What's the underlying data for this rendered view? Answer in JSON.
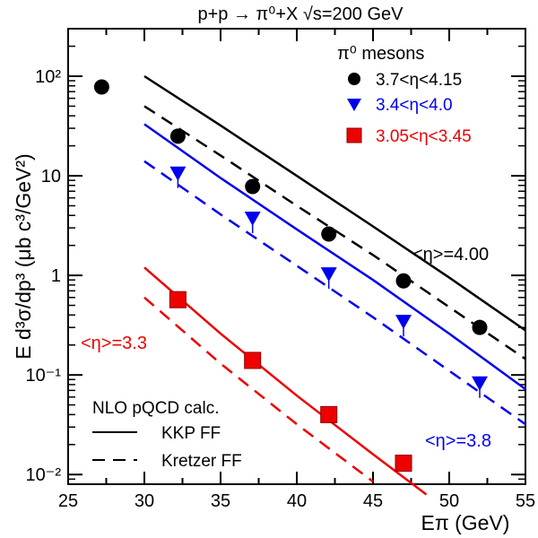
{
  "chart_data": {
    "type": "scatter",
    "title": "p+p → π⁰+X   √s=200 GeV",
    "xlabel": "Eπ (GeV)",
    "ylabel": "E d³σ/dp³ (μb c³/GeV²)",
    "xlim": [
      25,
      55
    ],
    "ylim": [
      0.008,
      300
    ],
    "yscale": "log",
    "x_ticks": [
      25,
      30,
      35,
      40,
      45,
      50,
      55
    ],
    "y_ticks": [
      {
        "value": 0.01,
        "label": "10⁻²"
      },
      {
        "value": 0.1,
        "label": "10⁻¹"
      },
      {
        "value": 1,
        "label": "1"
      },
      {
        "value": 10,
        "label": "10"
      },
      {
        "value": 100,
        "label": "10²"
      }
    ],
    "legend_header": "π⁰ mesons",
    "series": [
      {
        "name": "3.7<η<4.15",
        "marker": "circle",
        "color": "#000000",
        "x": [
          27.2,
          32.2,
          37.1,
          42.1,
          47.0,
          52.0
        ],
        "y": [
          78,
          25,
          7.8,
          2.6,
          0.88,
          0.3
        ]
      },
      {
        "name": "3.4<η<4.0",
        "marker": "triangle-down",
        "color": "#0000ee",
        "x": [
          32.2,
          37.1,
          42.1,
          47.0,
          52.0
        ],
        "y": [
          10.5,
          3.7,
          1.02,
          0.34,
          0.082
        ]
      },
      {
        "name": "3.05<η<3.45",
        "marker": "square",
        "color": "#ee0000",
        "x": [
          32.2,
          37.1,
          42.1,
          47.0
        ],
        "y": [
          0.57,
          0.14,
          0.04,
          0.013
        ]
      }
    ],
    "curves": [
      {
        "style": "solid",
        "color": "#000000",
        "x": [
          30,
          35,
          40,
          45,
          50,
          55
        ],
        "y": [
          100,
          32,
          10,
          3.1,
          0.95,
          0.28
        ]
      },
      {
        "style": "dashed",
        "color": "#000000",
        "x": [
          30,
          35,
          40,
          45,
          50,
          55
        ],
        "y": [
          50,
          16,
          5,
          1.6,
          0.48,
          0.145
        ]
      },
      {
        "style": "solid",
        "color": "#0000ee",
        "x": [
          30,
          35,
          40,
          45,
          50,
          55
        ],
        "y": [
          33,
          9.5,
          2.9,
          0.9,
          0.26,
          0.072
        ]
      },
      {
        "style": "dashed",
        "color": "#0000ee",
        "x": [
          30,
          35,
          40,
          45,
          50,
          55
        ],
        "y": [
          14,
          4.1,
          1.25,
          0.38,
          0.11,
          0.032
        ]
      },
      {
        "style": "solid",
        "color": "#ee0000",
        "x": [
          30,
          35,
          40,
          45,
          48.5
        ],
        "y": [
          1.2,
          0.26,
          0.062,
          0.016,
          0.0063
        ]
      },
      {
        "style": "dashed",
        "color": "#ee0000",
        "x": [
          30,
          35,
          40,
          45
        ],
        "y": [
          0.6,
          0.13,
          0.032,
          0.0085
        ]
      }
    ],
    "annotations": [
      {
        "text": "<η>=4.00",
        "color": "#000000"
      },
      {
        "text": "<η>=3.8",
        "color": "#0000ee"
      },
      {
        "text": "<η>=3.3",
        "color": "#ee0000"
      }
    ],
    "theory_legend": {
      "header": "NLO pQCD calc.",
      "items": [
        {
          "label": "KKP FF",
          "style": "solid"
        },
        {
          "label": "Kretzer FF",
          "style": "dashed"
        }
      ]
    }
  }
}
